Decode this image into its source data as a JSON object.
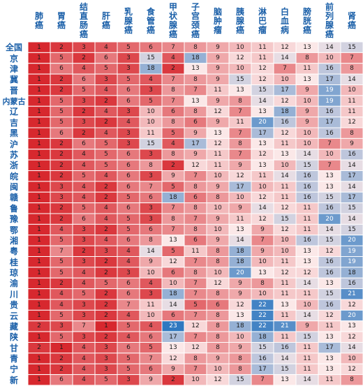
{
  "chart_data": {
    "type": "heatmap",
    "title": "",
    "columns": [
      "肺\n癌",
      "胃\n癌",
      "结\n直\n肠\n癌",
      "肝\n癌",
      "乳\n腺\n癌",
      "食\n管\n癌",
      "甲\n状\n腺\n癌",
      "子\n宫\n颈\n癌",
      "脑\n肿\n瘤",
      "胰\n腺\n癌",
      "淋\n巴\n瘤",
      "白\n血\n病",
      "膀\n胱\n癌",
      "前\n列\n腺\n癌",
      "肾\n癌"
    ],
    "rows": [
      "全国",
      "京",
      "津",
      "冀",
      "晋",
      "内蒙古",
      "辽",
      "吉",
      "黑",
      "沪",
      "苏",
      "浙",
      "皖",
      "闽",
      "赣",
      "鲁",
      "豫",
      "鄂",
      "湘",
      "粤",
      "桂",
      "琼",
      "渝",
      "川",
      "贵",
      "云",
      "藏",
      "陕",
      "甘",
      "青",
      "宁",
      "新"
    ],
    "values": [
      [
        1,
        2,
        3,
        4,
        5,
        6,
        7,
        8,
        9,
        10,
        11,
        12,
        13,
        14,
        15
      ],
      [
        1,
        5,
        2,
        6,
        3,
        15,
        4,
        18,
        9,
        12,
        11,
        14,
        8,
        10,
        7
      ],
      [
        1,
        6,
        4,
        5,
        3,
        18,
        2,
        13,
        9,
        10,
        12,
        7,
        11,
        16,
        8
      ],
      [
        1,
        2,
        6,
        3,
        5,
        4,
        7,
        8,
        9,
        15,
        12,
        10,
        13,
        17,
        14
      ],
      [
        1,
        2,
        5,
        4,
        6,
        3,
        8,
        7,
        11,
        13,
        15,
        17,
        9,
        19,
        10
      ],
      [
        1,
        5,
        3,
        2,
        6,
        5,
        7,
        13,
        9,
        8,
        14,
        12,
        10,
        19,
        11
      ],
      [
        1,
        5,
        2,
        4,
        3,
        10,
        6,
        8,
        12,
        7,
        13,
        18,
        9,
        16,
        11
      ],
      [
        1,
        5,
        3,
        2,
        4,
        10,
        8,
        6,
        9,
        11,
        20,
        16,
        9,
        17,
        12
      ],
      [
        1,
        6,
        2,
        4,
        3,
        11,
        5,
        9,
        13,
        7,
        17,
        12,
        10,
        16,
        8
      ],
      [
        1,
        2,
        6,
        5,
        3,
        15,
        4,
        17,
        12,
        8,
        13,
        11,
        10,
        7,
        9
      ],
      [
        1,
        2,
        4,
        5,
        6,
        3,
        8,
        9,
        11,
        7,
        12,
        13,
        14,
        10,
        16
      ],
      [
        1,
        2,
        4,
        5,
        6,
        8,
        2,
        12,
        11,
        9,
        13,
        10,
        15,
        7,
        14
      ],
      [
        1,
        2,
        5,
        4,
        6,
        3,
        9,
        7,
        10,
        12,
        11,
        14,
        16,
        13,
        17
      ],
      [
        1,
        3,
        4,
        2,
        6,
        7,
        5,
        8,
        9,
        17,
        10,
        11,
        16,
        13,
        14
      ],
      [
        1,
        3,
        4,
        2,
        5,
        6,
        18,
        6,
        8,
        10,
        12,
        11,
        16,
        15,
        17
      ],
      [
        1,
        2,
        5,
        4,
        6,
        3,
        7,
        8,
        10,
        9,
        14,
        12,
        11,
        16,
        15
      ],
      [
        1,
        2,
        6,
        4,
        5,
        3,
        8,
        7,
        9,
        11,
        12,
        15,
        11,
        20,
        14
      ],
      [
        1,
        4,
        3,
        2,
        5,
        6,
        7,
        8,
        10,
        13,
        9,
        12,
        11,
        14,
        15
      ],
      [
        1,
        5,
        3,
        4,
        6,
        8,
        13,
        6,
        9,
        14,
        7,
        10,
        16,
        15,
        20
      ],
      [
        1,
        7,
        2,
        3,
        4,
        14,
        5,
        11,
        8,
        18,
        9,
        10,
        13,
        12,
        19
      ],
      [
        1,
        5,
        3,
        2,
        4,
        9,
        12,
        7,
        8,
        18,
        10,
        11,
        13,
        16,
        19
      ],
      [
        1,
        5,
        4,
        2,
        3,
        10,
        6,
        8,
        10,
        20,
        13,
        12,
        12,
        16,
        18
      ],
      [
        1,
        2,
        4,
        5,
        6,
        4,
        10,
        7,
        12,
        9,
        8,
        11,
        14,
        13,
        16
      ],
      [
        1,
        4,
        5,
        2,
        6,
        3,
        18,
        7,
        8,
        9,
        10,
        11,
        11,
        15,
        21
      ],
      [
        1,
        4,
        3,
        2,
        7,
        11,
        14,
        5,
        6,
        12,
        22,
        13,
        10,
        16,
        12
      ],
      [
        1,
        5,
        3,
        2,
        4,
        10,
        6,
        7,
        8,
        13,
        22,
        11,
        14,
        12,
        20
      ],
      [
        2,
        3,
        7,
        1,
        5,
        4,
        23,
        12,
        8,
        18,
        22,
        21,
        9,
        11,
        13
      ],
      [
        1,
        5,
        3,
        2,
        4,
        6,
        17,
        7,
        8,
        10,
        18,
        11,
        15,
        13,
        12
      ],
      [
        2,
        1,
        4,
        3,
        6,
        5,
        13,
        12,
        8,
        9,
        15,
        16,
        11,
        17,
        14
      ],
      [
        1,
        2,
        4,
        3,
        5,
        7,
        12,
        8,
        9,
        8,
        16,
        14,
        11,
        13,
        10
      ],
      [
        1,
        2,
        4,
        3,
        5,
        6,
        9,
        7,
        10,
        8,
        17,
        15,
        11,
        13,
        12
      ],
      [
        1,
        6,
        4,
        5,
        3,
        9,
        2,
        10,
        12,
        15,
        7,
        13,
        14,
        11,
        8
      ]
    ]
  },
  "colors": {
    "low": "#d7282e",
    "mid": "#fbe8e8",
    "high": "#2f78c0",
    "header_text": "#1a5fa8",
    "grid": "#ffffff",
    "text": "#1a1a1a"
  }
}
